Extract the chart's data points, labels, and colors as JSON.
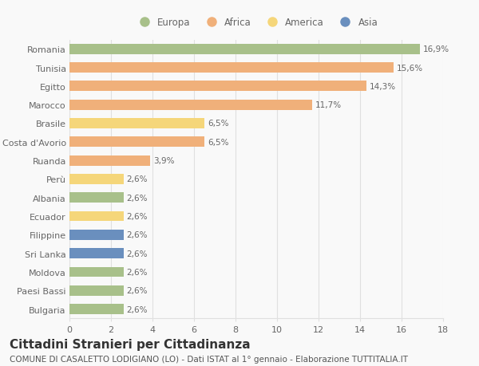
{
  "countries": [
    "Romania",
    "Tunisia",
    "Egitto",
    "Marocco",
    "Brasile",
    "Costa d'Avorio",
    "Ruanda",
    "Perù",
    "Albania",
    "Ecuador",
    "Filippine",
    "Sri Lanka",
    "Moldova",
    "Paesi Bassi",
    "Bulgaria"
  ],
  "values": [
    16.9,
    15.6,
    14.3,
    11.7,
    6.5,
    6.5,
    3.9,
    2.6,
    2.6,
    2.6,
    2.6,
    2.6,
    2.6,
    2.6,
    2.6
  ],
  "labels": [
    "16,9%",
    "15,6%",
    "14,3%",
    "11,7%",
    "6,5%",
    "6,5%",
    "3,9%",
    "2,6%",
    "2,6%",
    "2,6%",
    "2,6%",
    "2,6%",
    "2,6%",
    "2,6%",
    "2,6%"
  ],
  "continents": [
    "Europa",
    "Africa",
    "Africa",
    "Africa",
    "America",
    "Africa",
    "Africa",
    "America",
    "Europa",
    "America",
    "Asia",
    "Asia",
    "Europa",
    "Europa",
    "Europa"
  ],
  "colors": {
    "Europa": "#a8c08a",
    "Africa": "#f0b07a",
    "America": "#f5d67a",
    "Asia": "#6a8fbe"
  },
  "legend_labels": [
    "Europa",
    "Africa",
    "America",
    "Asia"
  ],
  "legend_colors": [
    "#a8c08a",
    "#f0b07a",
    "#f5d67a",
    "#6a8fbe"
  ],
  "title": "Cittadini Stranieri per Cittadinanza",
  "subtitle": "COMUNE DI CASALETTO LODIGIANO (LO) - Dati ISTAT al 1° gennaio - Elaborazione TUTTITALIA.IT",
  "xlim": [
    0,
    18
  ],
  "xticks": [
    0,
    2,
    4,
    6,
    8,
    10,
    12,
    14,
    16,
    18
  ],
  "background_color": "#f9f9f9",
  "grid_color": "#e0e0e0",
  "bar_height": 0.55,
  "label_fontsize": 7.5,
  "tick_fontsize": 8,
  "legend_fontsize": 8.5,
  "title_fontsize": 11,
  "subtitle_fontsize": 7.5
}
